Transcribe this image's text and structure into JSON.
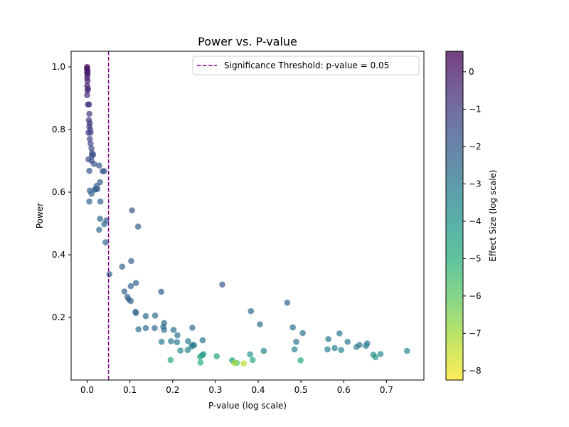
{
  "chart_data": {
    "type": "scatter",
    "title": "Power vs. P-value",
    "xlabel": "P-value (log scale)",
    "ylabel": "Power",
    "xlim": [
      -0.0375,
      0.7875
    ],
    "ylim": [
      0.0,
      1.05
    ],
    "x_ticks": [
      0.0,
      0.1,
      0.2,
      0.3,
      0.4,
      0.5,
      0.6,
      0.7
    ],
    "x_tick_labels": [
      "0.0",
      "0.1",
      "0.2",
      "0.3",
      "0.4",
      "0.5",
      "0.6",
      "0.7"
    ],
    "y_ticks": [
      0.2,
      0.4,
      0.6,
      0.8,
      1.0
    ],
    "y_tick_labels": [
      "0.2",
      "0.4",
      "0.6",
      "0.8",
      "1.0"
    ],
    "grid": false,
    "threshold": {
      "x": 0.05,
      "label": "Significance Threshold: p-value = 0.05",
      "color": "#800080",
      "style": "dashed"
    },
    "legend_position": "top-right",
    "colorbar": {
      "label": "Effect Size (log scale)",
      "colormap": "viridis",
      "range": [
        -8.25,
        0.55
      ],
      "ticks": [
        0,
        -1,
        -2,
        -3,
        -4,
        -5,
        -6,
        -7,
        -8
      ],
      "tick_labels": [
        "0",
        "−1",
        "−2",
        "−3",
        "−4",
        "−5",
        "−6",
        "−7",
        "−8"
      ]
    },
    "points": [
      {
        "x": 0.0,
        "y": 1.0,
        "c": 0.3
      },
      {
        "x": 0.0,
        "y": 0.995,
        "c": 0.2
      },
      {
        "x": 0.0,
        "y": 0.99,
        "c": 0.1
      },
      {
        "x": 0.001,
        "y": 0.985,
        "c": 0.0
      },
      {
        "x": 0.0,
        "y": 0.98,
        "c": -0.1
      },
      {
        "x": 0.001,
        "y": 0.975,
        "c": -0.1
      },
      {
        "x": 0.0,
        "y": 0.965,
        "c": -0.2
      },
      {
        "x": 0.001,
        "y": 0.955,
        "c": -0.2
      },
      {
        "x": 0.0,
        "y": 0.94,
        "c": -0.3
      },
      {
        "x": 0.002,
        "y": 0.93,
        "c": -0.4
      },
      {
        "x": 0.001,
        "y": 0.925,
        "c": -0.4
      },
      {
        "x": 0.0,
        "y": 0.91,
        "c": -0.5
      },
      {
        "x": 0.002,
        "y": 0.88,
        "c": -0.6
      },
      {
        "x": 0.004,
        "y": 0.88,
        "c": -0.7
      },
      {
        "x": 0.005,
        "y": 0.85,
        "c": -0.8
      },
      {
        "x": 0.004,
        "y": 0.83,
        "c": -0.9
      },
      {
        "x": 0.006,
        "y": 0.82,
        "c": -1.0
      },
      {
        "x": 0.005,
        "y": 0.81,
        "c": -1.0
      },
      {
        "x": 0.007,
        "y": 0.8,
        "c": -1.1
      },
      {
        "x": 0.003,
        "y": 0.79,
        "c": -1.2
      },
      {
        "x": 0.008,
        "y": 0.79,
        "c": -1.3
      },
      {
        "x": 0.006,
        "y": 0.77,
        "c": -1.3
      },
      {
        "x": 0.008,
        "y": 0.755,
        "c": -1.4
      },
      {
        "x": 0.01,
        "y": 0.74,
        "c": -1.4
      },
      {
        "x": 0.011,
        "y": 0.725,
        "c": -1.5
      },
      {
        "x": 0.014,
        "y": 0.72,
        "c": -1.5
      },
      {
        "x": 0.011,
        "y": 0.715,
        "c": -1.6
      },
      {
        "x": 0.003,
        "y": 0.705,
        "c": -1.6
      },
      {
        "x": 0.01,
        "y": 0.7,
        "c": -1.7
      },
      {
        "x": 0.016,
        "y": 0.69,
        "c": -1.7
      },
      {
        "x": 0.028,
        "y": 0.685,
        "c": -1.8
      },
      {
        "x": 0.005,
        "y": 0.668,
        "c": -1.8
      },
      {
        "x": 0.036,
        "y": 0.667,
        "c": -1.9
      },
      {
        "x": 0.04,
        "y": 0.667,
        "c": -1.9
      },
      {
        "x": 0.03,
        "y": 0.632,
        "c": -2.0
      },
      {
        "x": 0.022,
        "y": 0.62,
        "c": -2.0
      },
      {
        "x": 0.02,
        "y": 0.61,
        "c": -2.0
      },
      {
        "x": 0.018,
        "y": 0.608,
        "c": -2.1
      },
      {
        "x": 0.006,
        "y": 0.605,
        "c": -2.1
      },
      {
        "x": 0.024,
        "y": 0.61,
        "c": -2.1
      },
      {
        "x": 0.01,
        "y": 0.595,
        "c": -2.2
      },
      {
        "x": 0.005,
        "y": 0.57,
        "c": -2.2
      },
      {
        "x": 0.031,
        "y": 0.57,
        "c": -2.2
      },
      {
        "x": 0.03,
        "y": 0.515,
        "c": -2.3
      },
      {
        "x": 0.045,
        "y": 0.51,
        "c": -2.3
      },
      {
        "x": 0.04,
        "y": 0.498,
        "c": -2.3
      },
      {
        "x": 0.028,
        "y": 0.48,
        "c": -2.4
      },
      {
        "x": 0.043,
        "y": 0.44,
        "c": -2.4
      },
      {
        "x": 0.052,
        "y": 0.338,
        "c": -2.5
      },
      {
        "x": 0.105,
        "y": 0.542,
        "c": -1.9
      },
      {
        "x": 0.119,
        "y": 0.49,
        "c": -2.0
      },
      {
        "x": 0.103,
        "y": 0.38,
        "c": -2.1
      },
      {
        "x": 0.082,
        "y": 0.362,
        "c": -2.2
      },
      {
        "x": 0.114,
        "y": 0.31,
        "c": -2.1
      },
      {
        "x": 0.102,
        "y": 0.3,
        "c": -2.2
      },
      {
        "x": 0.316,
        "y": 0.305,
        "c": -1.9
      },
      {
        "x": 0.087,
        "y": 0.283,
        "c": -2.2
      },
      {
        "x": 0.173,
        "y": 0.282,
        "c": -2.1
      },
      {
        "x": 0.094,
        "y": 0.266,
        "c": -2.3
      },
      {
        "x": 0.097,
        "y": 0.258,
        "c": -2.3
      },
      {
        "x": 0.102,
        "y": 0.252,
        "c": -2.3
      },
      {
        "x": 0.468,
        "y": 0.247,
        "c": -2.2
      },
      {
        "x": 0.383,
        "y": 0.22,
        "c": -2.4
      },
      {
        "x": 0.113,
        "y": 0.218,
        "c": -2.4
      },
      {
        "x": 0.114,
        "y": 0.214,
        "c": -2.4
      },
      {
        "x": 0.159,
        "y": 0.206,
        "c": -2.5
      },
      {
        "x": 0.137,
        "y": 0.204,
        "c": -2.5
      },
      {
        "x": 0.18,
        "y": 0.182,
        "c": -2.6
      },
      {
        "x": 0.404,
        "y": 0.178,
        "c": -2.6
      },
      {
        "x": 0.178,
        "y": 0.17,
        "c": -2.6
      },
      {
        "x": 0.246,
        "y": 0.167,
        "c": -2.6
      },
      {
        "x": 0.137,
        "y": 0.166,
        "c": -2.6
      },
      {
        "x": 0.158,
        "y": 0.166,
        "c": -2.6
      },
      {
        "x": 0.481,
        "y": 0.168,
        "c": -2.6
      },
      {
        "x": 0.12,
        "y": 0.162,
        "c": -2.7
      },
      {
        "x": 0.18,
        "y": 0.16,
        "c": -2.7
      },
      {
        "x": 0.202,
        "y": 0.16,
        "c": -2.7
      },
      {
        "x": 0.504,
        "y": 0.15,
        "c": -2.7
      },
      {
        "x": 0.59,
        "y": 0.149,
        "c": -2.8
      },
      {
        "x": 0.211,
        "y": 0.143,
        "c": -2.8
      },
      {
        "x": 0.564,
        "y": 0.131,
        "c": -2.9
      },
      {
        "x": 0.27,
        "y": 0.127,
        "c": -2.9
      },
      {
        "x": 0.236,
        "y": 0.124,
        "c": -2.9
      },
      {
        "x": 0.196,
        "y": 0.124,
        "c": -3.0
      },
      {
        "x": 0.174,
        "y": 0.122,
        "c": -3.0
      },
      {
        "x": 0.21,
        "y": 0.121,
        "c": -3.0
      },
      {
        "x": 0.489,
        "y": 0.122,
        "c": -2.9
      },
      {
        "x": 0.609,
        "y": 0.122,
        "c": -3.0
      },
      {
        "x": 0.655,
        "y": 0.117,
        "c": -3.0
      },
      {
        "x": 0.637,
        "y": 0.112,
        "c": -3.0
      },
      {
        "x": 0.247,
        "y": 0.112,
        "c": -3.1
      },
      {
        "x": 0.25,
        "y": 0.111,
        "c": -3.1
      },
      {
        "x": 0.652,
        "y": 0.109,
        "c": -3.1
      },
      {
        "x": 0.244,
        "y": 0.107,
        "c": -3.1
      },
      {
        "x": 0.63,
        "y": 0.106,
        "c": -3.1
      },
      {
        "x": 0.579,
        "y": 0.102,
        "c": -3.2
      },
      {
        "x": 0.485,
        "y": 0.098,
        "c": -3.2
      },
      {
        "x": 0.562,
        "y": 0.098,
        "c": -3.2
      },
      {
        "x": 0.235,
        "y": 0.096,
        "c": -3.3
      },
      {
        "x": 0.594,
        "y": 0.096,
        "c": -3.3
      },
      {
        "x": 0.218,
        "y": 0.094,
        "c": -3.5
      },
      {
        "x": 0.413,
        "y": 0.093,
        "c": -3.3
      },
      {
        "x": 0.748,
        "y": 0.093,
        "c": -3.4
      },
      {
        "x": 0.686,
        "y": 0.083,
        "c": -3.5
      },
      {
        "x": 0.272,
        "y": 0.083,
        "c": -4.3
      },
      {
        "x": 0.381,
        "y": 0.082,
        "c": -4.0
      },
      {
        "x": 0.669,
        "y": 0.081,
        "c": -3.7
      },
      {
        "x": 0.269,
        "y": 0.079,
        "c": -4.0
      },
      {
        "x": 0.303,
        "y": 0.076,
        "c": -4.5
      },
      {
        "x": 0.264,
        "y": 0.074,
        "c": -4.5
      },
      {
        "x": 0.674,
        "y": 0.073,
        "c": -4.1
      },
      {
        "x": 0.195,
        "y": 0.064,
        "c": -4.8
      },
      {
        "x": 0.339,
        "y": 0.063,
        "c": -4.0
      },
      {
        "x": 0.387,
        "y": 0.064,
        "c": -4.8
      },
      {
        "x": 0.499,
        "y": 0.063,
        "c": -4.6
      },
      {
        "x": 0.265,
        "y": 0.056,
        "c": -5.0
      },
      {
        "x": 0.35,
        "y": 0.055,
        "c": -5.8
      },
      {
        "x": 0.344,
        "y": 0.054,
        "c": -7.0
      },
      {
        "x": 0.366,
        "y": 0.053,
        "c": -7.3
      }
    ]
  }
}
